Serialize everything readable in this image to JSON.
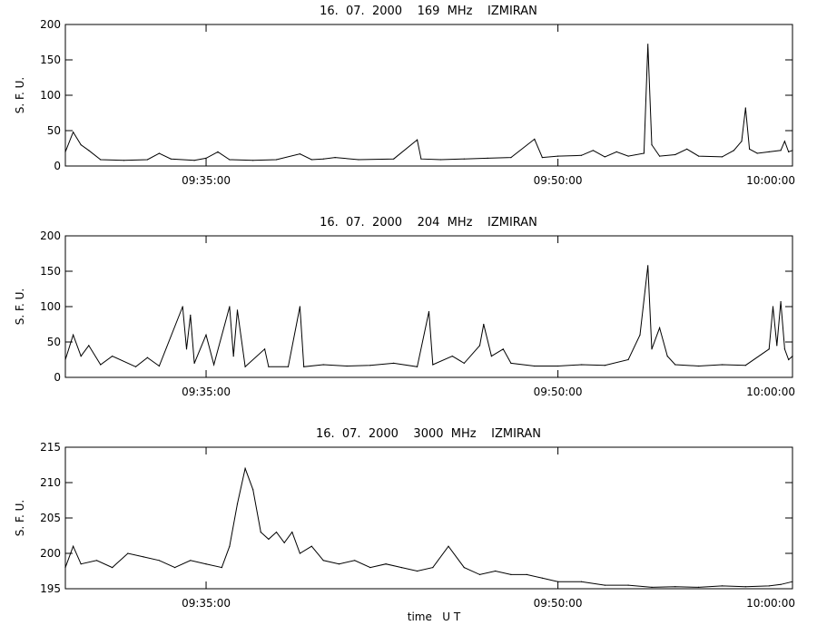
{
  "chart_data": [
    {
      "type": "line",
      "title": "16.  07.  2000    169  MHz    IZMIRAN",
      "ylabel": "S. F. U.",
      "xlabel": "",
      "ylim": [
        0,
        200
      ],
      "yticks": [
        0,
        50,
        100,
        150,
        200
      ],
      "xlim": [
        "09:29:00",
        "10:00:00"
      ],
      "xtick_labels": [
        "09:35:00",
        "09:50:00",
        "10:00:00"
      ],
      "xtick_positions": [
        "09:35:00",
        "09:50:00",
        "10:00:00"
      ],
      "grid": false,
      "series": [
        {
          "values": [
            {
              "x": "09:29:00",
              "y": 20
            },
            {
              "x": "09:29:20",
              "y": 48
            },
            {
              "x": "09:29:40",
              "y": 30
            },
            {
              "x": "09:30:00",
              "y": 22
            },
            {
              "x": "09:30:30",
              "y": 9
            },
            {
              "x": "09:31:30",
              "y": 8
            },
            {
              "x": "09:32:30",
              "y": 9
            },
            {
              "x": "09:33:00",
              "y": 18
            },
            {
              "x": "09:33:30",
              "y": 10
            },
            {
              "x": "09:34:30",
              "y": 8
            },
            {
              "x": "09:35:00",
              "y": 11
            },
            {
              "x": "09:35:30",
              "y": 20
            },
            {
              "x": "09:36:00",
              "y": 9
            },
            {
              "x": "09:37:00",
              "y": 8
            },
            {
              "x": "09:38:00",
              "y": 9
            },
            {
              "x": "09:39:00",
              "y": 17
            },
            {
              "x": "09:39:30",
              "y": 9
            },
            {
              "x": "09:40:00",
              "y": 10
            },
            {
              "x": "09:40:30",
              "y": 12
            },
            {
              "x": "09:41:30",
              "y": 9
            },
            {
              "x": "09:43:00",
              "y": 10
            },
            {
              "x": "09:44:00",
              "y": 37
            },
            {
              "x": "09:44:10",
              "y": 10
            },
            {
              "x": "09:45:00",
              "y": 9
            },
            {
              "x": "09:46:00",
              "y": 10
            },
            {
              "x": "09:47:00",
              "y": 11
            },
            {
              "x": "09:48:00",
              "y": 12
            },
            {
              "x": "09:49:00",
              "y": 38
            },
            {
              "x": "09:49:20",
              "y": 12
            },
            {
              "x": "09:50:00",
              "y": 14
            },
            {
              "x": "09:51:00",
              "y": 15
            },
            {
              "x": "09:51:30",
              "y": 22
            },
            {
              "x": "09:52:00",
              "y": 13
            },
            {
              "x": "09:52:30",
              "y": 20
            },
            {
              "x": "09:53:00",
              "y": 14
            },
            {
              "x": "09:53:40",
              "y": 18
            },
            {
              "x": "09:53:50",
              "y": 172
            },
            {
              "x": "09:54:00",
              "y": 30
            },
            {
              "x": "09:54:20",
              "y": 14
            },
            {
              "x": "09:55:00",
              "y": 16
            },
            {
              "x": "09:55:30",
              "y": 24
            },
            {
              "x": "09:56:00",
              "y": 14
            },
            {
              "x": "09:57:00",
              "y": 13
            },
            {
              "x": "09:57:30",
              "y": 22
            },
            {
              "x": "09:57:50",
              "y": 35
            },
            {
              "x": "09:58:00",
              "y": 82
            },
            {
              "x": "09:58:10",
              "y": 24
            },
            {
              "x": "09:58:30",
              "y": 18
            },
            {
              "x": "09:59:00",
              "y": 20
            },
            {
              "x": "09:59:30",
              "y": 22
            },
            {
              "x": "09:59:40",
              "y": 35
            },
            {
              "x": "09:59:50",
              "y": 20
            },
            {
              "x": "10:00:00",
              "y": 22
            }
          ]
        }
      ]
    },
    {
      "type": "line",
      "title": "16.  07.  2000    204  MHz    IZMIRAN",
      "ylabel": "S. F. U.",
      "xlabel": "",
      "ylim": [
        0,
        200
      ],
      "yticks": [
        0,
        50,
        100,
        150,
        200
      ],
      "xlim": [
        "09:29:00",
        "10:00:00"
      ],
      "xtick_labels": [
        "09:35:00",
        "09:50:00",
        "10:00:00"
      ],
      "xtick_positions": [
        "09:35:00",
        "09:50:00",
        "10:00:00"
      ],
      "grid": false,
      "series": [
        {
          "values": [
            {
              "x": "09:29:00",
              "y": 25
            },
            {
              "x": "09:29:20",
              "y": 60
            },
            {
              "x": "09:29:40",
              "y": 30
            },
            {
              "x": "09:30:00",
              "y": 45
            },
            {
              "x": "09:30:30",
              "y": 18
            },
            {
              "x": "09:31:00",
              "y": 30
            },
            {
              "x": "09:32:00",
              "y": 15
            },
            {
              "x": "09:32:30",
              "y": 28
            },
            {
              "x": "09:33:00",
              "y": 16
            },
            {
              "x": "09:34:00",
              "y": 100
            },
            {
              "x": "09:34:10",
              "y": 40
            },
            {
              "x": "09:34:20",
              "y": 88
            },
            {
              "x": "09:34:30",
              "y": 20
            },
            {
              "x": "09:35:00",
              "y": 60
            },
            {
              "x": "09:35:20",
              "y": 18
            },
            {
              "x": "09:36:00",
              "y": 100
            },
            {
              "x": "09:36:10",
              "y": 30
            },
            {
              "x": "09:36:20",
              "y": 95
            },
            {
              "x": "09:36:40",
              "y": 15
            },
            {
              "x": "09:37:30",
              "y": 40
            },
            {
              "x": "09:37:40",
              "y": 15
            },
            {
              "x": "09:38:30",
              "y": 15
            },
            {
              "x": "09:39:00",
              "y": 100
            },
            {
              "x": "09:39:10",
              "y": 15
            },
            {
              "x": "09:40:00",
              "y": 18
            },
            {
              "x": "09:41:00",
              "y": 16
            },
            {
              "x": "09:42:00",
              "y": 17
            },
            {
              "x": "09:43:00",
              "y": 20
            },
            {
              "x": "09:44:00",
              "y": 15
            },
            {
              "x": "09:44:30",
              "y": 93
            },
            {
              "x": "09:44:40",
              "y": 18
            },
            {
              "x": "09:45:30",
              "y": 30
            },
            {
              "x": "09:46:00",
              "y": 20
            },
            {
              "x": "09:46:40",
              "y": 45
            },
            {
              "x": "09:46:50",
              "y": 75
            },
            {
              "x": "09:47:10",
              "y": 30
            },
            {
              "x": "09:47:40",
              "y": 40
            },
            {
              "x": "09:48:00",
              "y": 20
            },
            {
              "x": "09:49:00",
              "y": 16
            },
            {
              "x": "09:50:00",
              "y": 16
            },
            {
              "x": "09:51:00",
              "y": 18
            },
            {
              "x": "09:52:00",
              "y": 17
            },
            {
              "x": "09:53:00",
              "y": 25
            },
            {
              "x": "09:53:30",
              "y": 60
            },
            {
              "x": "09:53:50",
              "y": 158
            },
            {
              "x": "09:54:00",
              "y": 40
            },
            {
              "x": "09:54:20",
              "y": 70
            },
            {
              "x": "09:54:40",
              "y": 30
            },
            {
              "x": "09:55:00",
              "y": 18
            },
            {
              "x": "09:56:00",
              "y": 16
            },
            {
              "x": "09:57:00",
              "y": 18
            },
            {
              "x": "09:58:00",
              "y": 17
            },
            {
              "x": "09:59:00",
              "y": 40
            },
            {
              "x": "09:59:10",
              "y": 100
            },
            {
              "x": "09:59:20",
              "y": 45
            },
            {
              "x": "09:59:30",
              "y": 107
            },
            {
              "x": "09:59:40",
              "y": 40
            },
            {
              "x": "09:59:50",
              "y": 25
            },
            {
              "x": "10:00:00",
              "y": 30
            }
          ]
        }
      ]
    },
    {
      "type": "line",
      "title": "16.  07.  2000    3000  MHz    IZMIRAN",
      "ylabel": "S. F. U.",
      "xlabel": "time   U T",
      "ylim": [
        195,
        215
      ],
      "yticks": [
        195,
        200,
        205,
        210,
        215
      ],
      "xlim": [
        "09:29:00",
        "10:00:00"
      ],
      "xtick_labels": [
        "09:35:00",
        "09:50:00",
        "10:00:00"
      ],
      "xtick_positions": [
        "09:35:00",
        "09:50:00",
        "10:00:00"
      ],
      "grid": false,
      "series": [
        {
          "values": [
            {
              "x": "09:29:00",
              "y": 198
            },
            {
              "x": "09:29:20",
              "y": 201
            },
            {
              "x": "09:29:40",
              "y": 198.5
            },
            {
              "x": "09:30:20",
              "y": 199
            },
            {
              "x": "09:31:00",
              "y": 198
            },
            {
              "x": "09:31:40",
              "y": 200
            },
            {
              "x": "09:32:20",
              "y": 199.5
            },
            {
              "x": "09:33:00",
              "y": 199
            },
            {
              "x": "09:33:40",
              "y": 198
            },
            {
              "x": "09:34:20",
              "y": 199
            },
            {
              "x": "09:35:00",
              "y": 198.5
            },
            {
              "x": "09:35:40",
              "y": 198
            },
            {
              "x": "09:36:00",
              "y": 201
            },
            {
              "x": "09:36:20",
              "y": 207
            },
            {
              "x": "09:36:40",
              "y": 212
            },
            {
              "x": "09:37:00",
              "y": 209
            },
            {
              "x": "09:37:20",
              "y": 203
            },
            {
              "x": "09:37:40",
              "y": 202
            },
            {
              "x": "09:38:00",
              "y": 203
            },
            {
              "x": "09:38:20",
              "y": 201.5
            },
            {
              "x": "09:38:40",
              "y": 203
            },
            {
              "x": "09:39:00",
              "y": 200
            },
            {
              "x": "09:39:30",
              "y": 201
            },
            {
              "x": "09:40:00",
              "y": 199
            },
            {
              "x": "09:40:40",
              "y": 198.5
            },
            {
              "x": "09:41:20",
              "y": 199
            },
            {
              "x": "09:42:00",
              "y": 198
            },
            {
              "x": "09:42:40",
              "y": 198.5
            },
            {
              "x": "09:43:20",
              "y": 198
            },
            {
              "x": "09:44:00",
              "y": 197.5
            },
            {
              "x": "09:44:40",
              "y": 198
            },
            {
              "x": "09:45:20",
              "y": 201
            },
            {
              "x": "09:46:00",
              "y": 198
            },
            {
              "x": "09:46:40",
              "y": 197
            },
            {
              "x": "09:47:20",
              "y": 197.5
            },
            {
              "x": "09:48:00",
              "y": 197
            },
            {
              "x": "09:48:40",
              "y": 197
            },
            {
              "x": "09:49:20",
              "y": 196.5
            },
            {
              "x": "09:50:00",
              "y": 196
            },
            {
              "x": "09:51:00",
              "y": 196
            },
            {
              "x": "09:52:00",
              "y": 195.5
            },
            {
              "x": "09:53:00",
              "y": 195.5
            },
            {
              "x": "09:54:00",
              "y": 195.2
            },
            {
              "x": "09:55:00",
              "y": 195.3
            },
            {
              "x": "09:56:00",
              "y": 195.2
            },
            {
              "x": "09:57:00",
              "y": 195.4
            },
            {
              "x": "09:58:00",
              "y": 195.3
            },
            {
              "x": "09:59:00",
              "y": 195.4
            },
            {
              "x": "09:59:30",
              "y": 195.6
            },
            {
              "x": "10:00:00",
              "y": 196
            }
          ]
        }
      ]
    }
  ]
}
